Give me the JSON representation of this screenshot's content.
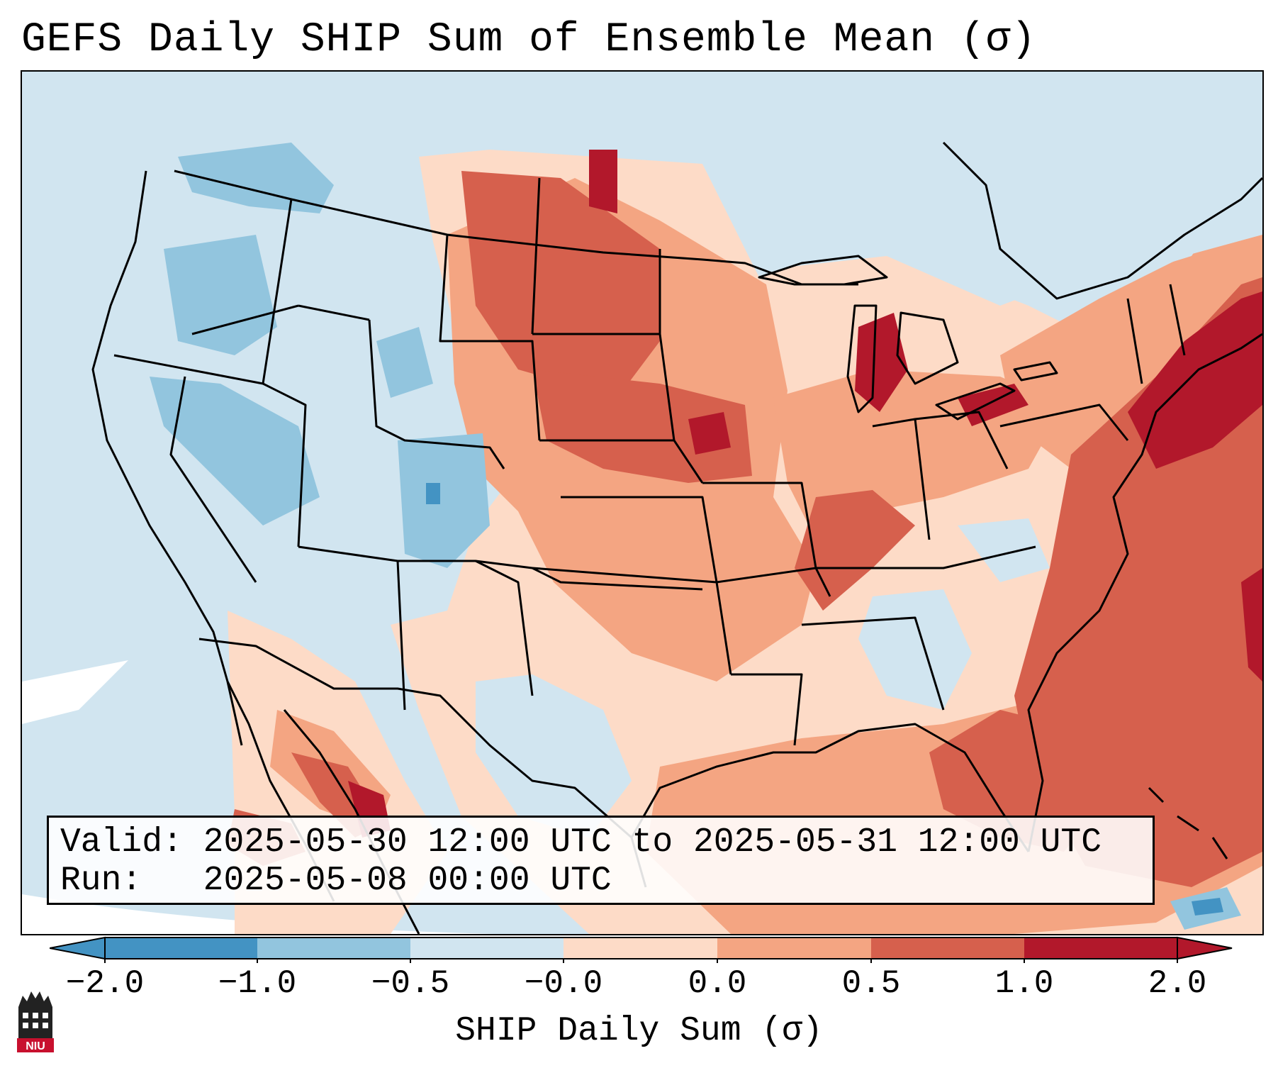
{
  "title": "GEFS Daily SHIP Sum of Ensemble Mean (σ)",
  "info": {
    "valid_line": "Valid: 2025-05-30 12:00 UTC to 2025-05-31 12:00 UTC",
    "run_line": "Run:   2025-05-08 00:00 UTC"
  },
  "colorbar": {
    "label": "SHIP Daily Sum (σ)",
    "ticks": [
      "−2.0",
      "−1.0",
      "−0.5",
      "−0.0",
      "0.0",
      "0.5",
      "1.0",
      "2.0"
    ],
    "colors": [
      "#4393c3",
      "#92c5de",
      "#d1e5f0",
      "#fddbc7",
      "#f4a582",
      "#d6604d",
      "#b2182b"
    ],
    "extend": "both"
  },
  "map": {
    "projection": "lambert-conformal",
    "region": "Continental United States",
    "field": "SHIP daily sum anomaly",
    "colors": {
      "neg_strong": "#4393c3",
      "neg_mid": "#92c5de",
      "neg_weak": "#d1e5f0",
      "pos_weak": "#fddbc7",
      "pos_mid": "#f4a582",
      "pos_strong": "#d6604d",
      "pos_extreme": "#b2182b"
    }
  },
  "logo": {
    "name": "NIU",
    "text": "NIU"
  }
}
